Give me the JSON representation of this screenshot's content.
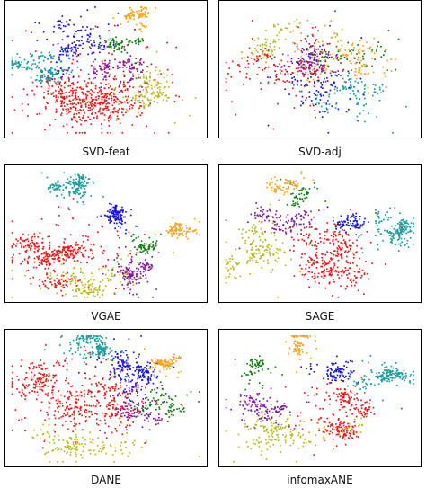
{
  "colors": {
    "red": "#e8191b",
    "blue": "#1a14d9",
    "teal": "#1a9a9a",
    "orange": "#f5a51f",
    "green": "#127a12",
    "purple": "#7e1a9c",
    "olive": "#b8b81c"
  },
  "chart_data": [
    {
      "type": "scatter",
      "title": "SVD-feat",
      "clusters": [
        {
          "color": "red",
          "cx": 0.45,
          "cy": 0.66,
          "sx": 0.17,
          "sy": 0.17,
          "n": 520
        },
        {
          "color": "teal",
          "cx": 0.16,
          "cy": 0.46,
          "sx": 0.08,
          "sy": 0.05,
          "n": 170
        },
        {
          "color": "orange",
          "cx": 0.66,
          "cy": 0.1,
          "sx": 0.04,
          "sy": 0.04,
          "n": 90
        },
        {
          "color": "blue",
          "cx": 0.36,
          "cy": 0.28,
          "sx": 0.08,
          "sy": 0.09,
          "n": 160
        },
        {
          "color": "green",
          "cx": 0.56,
          "cy": 0.3,
          "sx": 0.05,
          "sy": 0.04,
          "n": 70
        },
        {
          "color": "purple",
          "cx": 0.56,
          "cy": 0.52,
          "sx": 0.09,
          "sy": 0.1,
          "n": 130
        },
        {
          "color": "olive",
          "cx": 0.7,
          "cy": 0.64,
          "sx": 0.1,
          "sy": 0.1,
          "n": 140
        }
      ]
    },
    {
      "type": "scatter",
      "title": "SVD-adj",
      "clusters": [
        {
          "color": "red",
          "cx": 0.35,
          "cy": 0.55,
          "sx": 0.15,
          "sy": 0.14,
          "n": 170
        },
        {
          "color": "blue",
          "cx": 0.5,
          "cy": 0.62,
          "sx": 0.12,
          "sy": 0.13,
          "n": 110
        },
        {
          "color": "teal",
          "cx": 0.66,
          "cy": 0.7,
          "sx": 0.1,
          "sy": 0.1,
          "n": 100
        },
        {
          "color": "orange",
          "cx": 0.68,
          "cy": 0.45,
          "sx": 0.12,
          "sy": 0.1,
          "n": 110
        },
        {
          "color": "green",
          "cx": 0.6,
          "cy": 0.4,
          "sx": 0.13,
          "sy": 0.12,
          "n": 70
        },
        {
          "color": "purple",
          "cx": 0.47,
          "cy": 0.45,
          "sx": 0.08,
          "sy": 0.07,
          "n": 110
        },
        {
          "color": "olive",
          "cx": 0.34,
          "cy": 0.32,
          "sx": 0.12,
          "sy": 0.1,
          "n": 90
        }
      ]
    },
    {
      "type": "scatter",
      "title": "VGAE",
      "clusters": [
        {
          "color": "teal",
          "cx": 0.32,
          "cy": 0.16,
          "sx": 0.05,
          "sy": 0.05,
          "n": 170
        },
        {
          "color": "blue",
          "cx": 0.56,
          "cy": 0.37,
          "sx": 0.05,
          "sy": 0.04,
          "n": 130
        },
        {
          "color": "orange",
          "cx": 0.86,
          "cy": 0.46,
          "sx": 0.05,
          "sy": 0.04,
          "n": 90
        },
        {
          "color": "red",
          "cx": 0.28,
          "cy": 0.62,
          "sx": 0.15,
          "sy": 0.1,
          "n": 380
        },
        {
          "color": "green",
          "cx": 0.68,
          "cy": 0.6,
          "sx": 0.05,
          "sy": 0.05,
          "n": 70
        },
        {
          "color": "purple",
          "cx": 0.64,
          "cy": 0.8,
          "sx": 0.06,
          "sy": 0.08,
          "n": 140
        },
        {
          "color": "olive",
          "cx": 0.4,
          "cy": 0.78,
          "sx": 0.16,
          "sy": 0.09,
          "n": 160
        }
      ]
    },
    {
      "type": "scatter",
      "title": "SAGE",
      "clusters": [
        {
          "color": "orange",
          "cx": 0.32,
          "cy": 0.14,
          "sx": 0.06,
          "sy": 0.06,
          "n": 70
        },
        {
          "color": "teal",
          "cx": 0.84,
          "cy": 0.46,
          "sx": 0.08,
          "sy": 0.07,
          "n": 160
        },
        {
          "color": "blue",
          "cx": 0.65,
          "cy": 0.41,
          "sx": 0.05,
          "sy": 0.04,
          "n": 80
        },
        {
          "color": "purple",
          "cx": 0.3,
          "cy": 0.4,
          "sx": 0.09,
          "sy": 0.07,
          "n": 120
        },
        {
          "color": "green",
          "cx": 0.4,
          "cy": 0.2,
          "sx": 0.05,
          "sy": 0.05,
          "n": 50
        },
        {
          "color": "red",
          "cx": 0.56,
          "cy": 0.66,
          "sx": 0.11,
          "sy": 0.16,
          "n": 320
        },
        {
          "color": "olive",
          "cx": 0.18,
          "cy": 0.64,
          "sx": 0.09,
          "sy": 0.14,
          "n": 150
        }
      ]
    },
    {
      "type": "scatter",
      "title": "DANE",
      "clusters": [
        {
          "color": "teal",
          "cx": 0.4,
          "cy": 0.12,
          "sx": 0.07,
          "sy": 0.05,
          "n": 170
        },
        {
          "color": "orange",
          "cx": 0.78,
          "cy": 0.24,
          "sx": 0.05,
          "sy": 0.04,
          "n": 100
        },
        {
          "color": "blue",
          "cx": 0.58,
          "cy": 0.32,
          "sx": 0.08,
          "sy": 0.09,
          "n": 200
        },
        {
          "color": "red",
          "cx": 0.35,
          "cy": 0.5,
          "sx": 0.17,
          "sy": 0.16,
          "n": 470
        },
        {
          "color": "green",
          "cx": 0.72,
          "cy": 0.54,
          "sx": 0.08,
          "sy": 0.07,
          "n": 80
        },
        {
          "color": "purple",
          "cx": 0.63,
          "cy": 0.56,
          "sx": 0.09,
          "sy": 0.08,
          "n": 100
        },
        {
          "color": "olive",
          "cx": 0.42,
          "cy": 0.8,
          "sx": 0.16,
          "sy": 0.07,
          "n": 140
        }
      ]
    },
    {
      "type": "scatter",
      "title": "infomaxANE",
      "clusters": [
        {
          "color": "orange",
          "cx": 0.4,
          "cy": 0.1,
          "sx": 0.04,
          "sy": 0.06,
          "n": 80
        },
        {
          "color": "teal",
          "cx": 0.83,
          "cy": 0.33,
          "sx": 0.1,
          "sy": 0.06,
          "n": 150
        },
        {
          "color": "blue",
          "cx": 0.57,
          "cy": 0.3,
          "sx": 0.05,
          "sy": 0.05,
          "n": 90
        },
        {
          "color": "red",
          "cx": 0.56,
          "cy": 0.6,
          "sx": 0.09,
          "sy": 0.09,
          "n": 240
        },
        {
          "color": "green",
          "cx": 0.2,
          "cy": 0.28,
          "sx": 0.05,
          "sy": 0.05,
          "n": 60
        },
        {
          "color": "purple",
          "cx": 0.22,
          "cy": 0.55,
          "sx": 0.09,
          "sy": 0.06,
          "n": 130
        },
        {
          "color": "olive",
          "cx": 0.33,
          "cy": 0.78,
          "sx": 0.12,
          "sy": 0.09,
          "n": 160
        }
      ]
    }
  ]
}
